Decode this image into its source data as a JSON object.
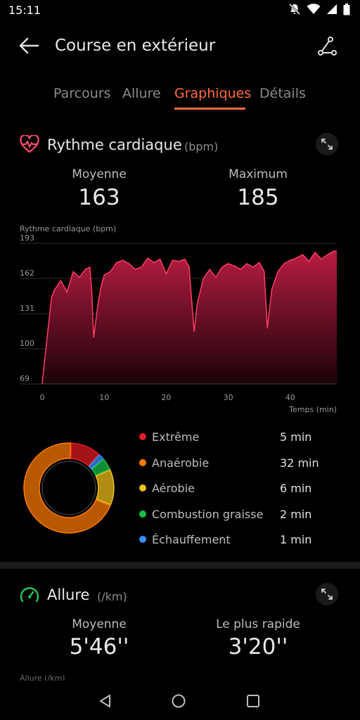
{
  "status": {
    "time": "15:11"
  },
  "appbar": {
    "title": "Course en extérieur"
  },
  "tabs": [
    {
      "label": "Parcours",
      "active": false
    },
    {
      "label": "Allure",
      "active": false
    },
    {
      "label": "Graphiques",
      "active": true
    },
    {
      "label": "Détails",
      "active": false
    }
  ],
  "heart": {
    "title": "Rythme cardiaque",
    "unit": "(bpm)",
    "avg_label": "Moyenne",
    "avg_value": "163",
    "max_label": "Maximum",
    "max_value": "185"
  },
  "chart_data": {
    "type": "area",
    "ylabel": "Rythme cardiaque (bpm)",
    "xlabel": "Temps (min)",
    "yticks": [
      193,
      162,
      131,
      100,
      69
    ],
    "xticks": [
      0,
      10,
      20,
      30,
      40
    ],
    "ylim": [
      69,
      193
    ],
    "xlim": [
      0,
      47.5
    ],
    "grid": true,
    "color": "#e8335a",
    "x": [
      0,
      0.5,
      1,
      1.5,
      2,
      3,
      4,
      5,
      6,
      7,
      7.7,
      8,
      8.3,
      9,
      9.5,
      10,
      11,
      12,
      13,
      14,
      15,
      16,
      17,
      18,
      19,
      20,
      21,
      22,
      23,
      23.7,
      24,
      24.5,
      25,
      26,
      27,
      28,
      29,
      30,
      31,
      32,
      33,
      34,
      35,
      35.8,
      36.3,
      37,
      38,
      39,
      40,
      41,
      42,
      43,
      44,
      45,
      46,
      47,
      47.5
    ],
    "y": [
      69,
      95,
      120,
      145,
      152,
      160,
      150,
      168,
      163,
      170,
      172,
      150,
      110,
      140,
      155,
      165,
      168,
      176,
      178,
      175,
      170,
      172,
      180,
      176,
      179,
      166,
      178,
      177,
      179,
      172,
      150,
      115,
      140,
      162,
      170,
      163,
      172,
      175,
      173,
      170,
      175,
      172,
      176,
      168,
      118,
      152,
      168,
      175,
      178,
      180,
      183,
      177,
      185,
      179,
      183,
      186,
      186
    ]
  },
  "zones": {
    "items": [
      {
        "name": "Extrême",
        "value": "5 min",
        "minutes": 5,
        "color": "#e31b23"
      },
      {
        "name": "Anaérobie",
        "value": "32 min",
        "minutes": 32,
        "color": "#ff7a00"
      },
      {
        "name": "Aérobie",
        "value": "6 min",
        "minutes": 6,
        "color": "#f2c21a"
      },
      {
        "name": "Combustion graisse",
        "value": "2 min",
        "minutes": 2,
        "color": "#18c24a"
      },
      {
        "name": "Échauffement",
        "value": "1 min",
        "minutes": 1,
        "color": "#3d8eff"
      }
    ]
  },
  "pace": {
    "title": "Allure",
    "unit": "(/km)",
    "avg_label": "Moyenne",
    "avg_value": "5'46''",
    "fast_label": "Le plus rapide",
    "fast_value": "3'20''",
    "chart_label": "Allure (/km)"
  }
}
